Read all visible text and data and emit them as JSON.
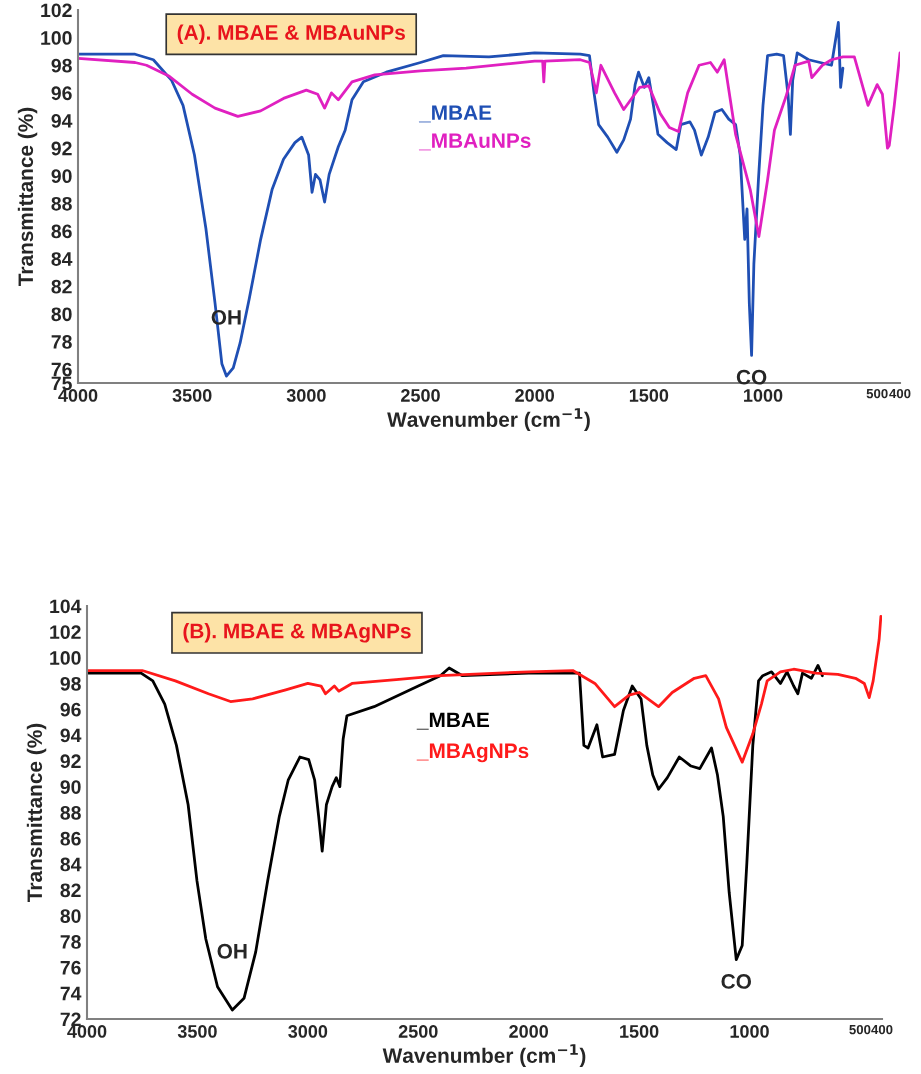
{
  "chart_data": [
    {
      "type": "line",
      "title": "(A). MBAE & MBAuNPs",
      "xlabel": "Wavenumber (cm$^{−1}$)",
      "ylabel": "Transmittance (%)",
      "xlim": [
        4000,
        400
      ],
      "ylim": [
        75,
        102
      ],
      "xticks": [
        4000,
        3500,
        3000,
        2500,
        2000,
        1500,
        1000,
        500,
        400
      ],
      "yticks": [
        75,
        76,
        78,
        80,
        82,
        84,
        86,
        88,
        90,
        92,
        94,
        96,
        98,
        100,
        102
      ],
      "series": [
        {
          "name": "_MBAE",
          "color": "#1f4fb4",
          "x": [
            4000,
            3750,
            3670,
            3590,
            3540,
            3490,
            3440,
            3400,
            3370,
            3350,
            3320,
            3290,
            3250,
            3200,
            3150,
            3100,
            3050,
            3020,
            2990,
            2975,
            2960,
            2940,
            2920,
            2900,
            2860,
            2830,
            2800,
            2750,
            2650,
            2500,
            2400,
            2200,
            2000,
            1800,
            1760,
            1740,
            1720,
            1680,
            1640,
            1610,
            1580,
            1560,
            1545,
            1520,
            1500,
            1480,
            1460,
            1420,
            1380,
            1360,
            1320,
            1300,
            1270,
            1240,
            1210,
            1180,
            1150,
            1120,
            1100,
            1080,
            1070,
            1060,
            1050,
            1040,
            1020,
            1000,
            980,
            940,
            910,
            890,
            880,
            870,
            850,
            800,
            750,
            700,
            670,
            660,
            650
          ],
          "values": [
            98.8,
            98.8,
            98.4,
            96.9,
            95.1,
            91.5,
            86.2,
            80.8,
            76.4,
            75.5,
            76.1,
            77.9,
            81.1,
            85.4,
            89.0,
            91.2,
            92.4,
            92.8,
            91.5,
            88.8,
            90.1,
            89.7,
            88.1,
            90.1,
            92.1,
            93.3,
            95.5,
            96.8,
            97.5,
            98.2,
            98.7,
            98.6,
            98.9,
            98.8,
            98.7,
            96.0,
            93.7,
            92.8,
            91.7,
            92.6,
            94.1,
            96.6,
            97.5,
            96.4,
            97.1,
            95.1,
            93.0,
            92.4,
            91.9,
            93.7,
            93.9,
            93.3,
            91.5,
            92.8,
            94.6,
            94.8,
            94.1,
            93.7,
            91.5,
            85.4,
            87.6,
            80.8,
            77.0,
            83.6,
            89.7,
            95.1,
            98.7,
            98.8,
            98.7,
            95.8,
            93.0,
            96.9,
            98.9,
            98.4,
            98.2,
            98.0,
            101.1,
            96.4,
            97.8
          ]
        },
        {
          "name": "_MBAuNPs",
          "color": "#e020c0",
          "x": [
            4000,
            3750,
            3700,
            3600,
            3500,
            3400,
            3300,
            3200,
            3100,
            3000,
            2950,
            2920,
            2890,
            2860,
            2800,
            2700,
            2500,
            2300,
            2000,
            1965,
            1960,
            1955,
            1800,
            1760,
            1730,
            1710,
            1650,
            1610,
            1540,
            1500,
            1450,
            1410,
            1370,
            1330,
            1280,
            1230,
            1200,
            1170,
            1120,
            1056,
            1018,
            980,
            950,
            900,
            860,
            800,
            786,
            740,
            700,
            650,
            600,
            540,
            500,
            477,
            455,
            447,
            425,
            400
          ],
          "values": [
            98.5,
            98.2,
            98.0,
            97.2,
            95.9,
            94.9,
            94.3,
            94.7,
            95.6,
            96.2,
            95.9,
            94.9,
            96.0,
            95.5,
            96.8,
            97.3,
            97.6,
            97.8,
            98.3,
            98.3,
            96.8,
            98.3,
            98.4,
            98.2,
            96.0,
            98.0,
            96.0,
            94.8,
            96.4,
            96.5,
            94.5,
            93.5,
            93.2,
            96.0,
            98.0,
            98.2,
            97.5,
            98.4,
            93.0,
            89.0,
            85.6,
            89.7,
            93.3,
            95.7,
            98.0,
            98.3,
            97.1,
            98.0,
            98.4,
            98.6,
            98.6,
            95.1,
            96.6,
            95.9,
            92.0,
            92.2,
            95.1,
            98.9
          ]
        }
      ],
      "annotations": [
        {
          "text": "OH",
          "x": 3350,
          "y": 75.5
        },
        {
          "text": "CO",
          "x": 1050,
          "y": 77.0
        }
      ]
    },
    {
      "type": "line",
      "title": "(B). MBAE & MBAgNPs",
      "xlabel": "Wavenumber (cm$^{−1}$)",
      "ylabel": "Transmittance (%)",
      "xlim": [
        4000,
        400
      ],
      "ylim": [
        72,
        104
      ],
      "xticks": [
        4000,
        3500,
        3000,
        2500,
        2000,
        1500,
        1000,
        500,
        400
      ],
      "yticks": [
        72,
        74,
        76,
        78,
        80,
        82,
        84,
        86,
        88,
        90,
        92,
        94,
        96,
        98,
        100,
        102,
        104
      ],
      "series": [
        {
          "name": "_MBAE",
          "color": "#000000",
          "x": [
            4000,
            3755,
            3702,
            3648,
            3595,
            3542,
            3502,
            3462,
            3409,
            3342,
            3289,
            3236,
            3182,
            3129,
            3089,
            3036,
            2996,
            2969,
            2951,
            2935,
            2916,
            2890,
            2871,
            2855,
            2840,
            2823,
            2700,
            2500,
            2400,
            2360,
            2300,
            2000,
            1800,
            1770,
            1750,
            1731,
            1691,
            1665,
            1611,
            1571,
            1531,
            1491,
            1465,
            1438,
            1412,
            1372,
            1318,
            1265,
            1225,
            1172,
            1145,
            1119,
            1092,
            1060,
            1033,
            1012,
            985,
            959,
            940,
            900,
            860,
            830,
            800,
            781,
            760,
            720,
            690,
            670
          ],
          "values": [
            98.8,
            98.8,
            98.2,
            96.4,
            93.2,
            88.6,
            82.7,
            78.2,
            74.5,
            72.7,
            73.6,
            77.2,
            82.7,
            87.7,
            90.5,
            92.3,
            92.1,
            90.5,
            87.7,
            85.0,
            88.6,
            90.0,
            90.7,
            90.0,
            93.7,
            95.5,
            96.2,
            97.8,
            98.6,
            99.2,
            98.6,
            98.8,
            98.8,
            98.8,
            93.2,
            93.0,
            94.8,
            92.3,
            92.5,
            95.9,
            97.8,
            96.8,
            93.2,
            90.9,
            89.8,
            90.7,
            92.3,
            91.6,
            91.4,
            93.0,
            90.9,
            87.7,
            81.8,
            76.6,
            77.7,
            84.1,
            93.2,
            98.2,
            98.6,
            98.9,
            98.0,
            98.9,
            97.8,
            97.2,
            98.8,
            98.4,
            99.4,
            98.6
          ]
        },
        {
          "name": "_MBAgNPs",
          "color": "#ff1a1a",
          "x": [
            4000,
            3750,
            3600,
            3450,
            3350,
            3250,
            3100,
            3000,
            2940,
            2920,
            2880,
            2860,
            2800,
            2600,
            2400,
            2000,
            1800,
            1700,
            1611,
            1545,
            1500,
            1412,
            1350,
            1250,
            1198,
            1140,
            1105,
            1033,
            985,
            946,
            920,
            860,
            800,
            700,
            600,
            520,
            480,
            458,
            440,
            413,
            405
          ],
          "values": [
            99.0,
            99.0,
            98.2,
            97.2,
            96.6,
            96.8,
            97.5,
            98.0,
            97.8,
            97.2,
            97.8,
            97.4,
            98.0,
            98.3,
            98.6,
            98.9,
            99.0,
            98.0,
            96.2,
            97.1,
            97.3,
            96.2,
            97.3,
            98.4,
            98.6,
            96.8,
            94.6,
            91.9,
            94.1,
            96.4,
            98.2,
            98.9,
            99.1,
            98.8,
            98.7,
            98.4,
            98.0,
            96.9,
            98.2,
            101.4,
            103.2
          ]
        }
      ],
      "annotations": [
        {
          "text": "OH",
          "x": 3342,
          "y": 72.7
        },
        {
          "text": "CO",
          "x": 1060,
          "y": 76.6
        }
      ]
    }
  ]
}
